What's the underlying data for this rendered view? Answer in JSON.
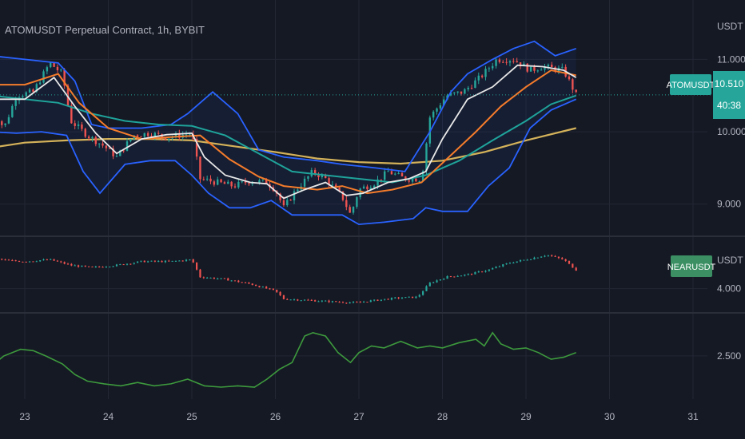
{
  "header": {
    "title": "ATOMUSDT Perpetual Contract, 1h, BYBIT"
  },
  "price_axis": {
    "unit": "USDT",
    "ticks": [
      "11.000",
      "10.000",
      "9.000"
    ],
    "tick_values": [
      11.0,
      10.0,
      9.0
    ],
    "last_symbol": "ATOMUSDT",
    "last_price": "10.510",
    "last_value": 10.51,
    "countdown": "40:38"
  },
  "near_pane": {
    "unit": "USDT",
    "symbol": "NEARUSDT",
    "tick_label": "4.000",
    "tick_value": 4.0
  },
  "ratio_pane": {
    "tick_label": "2.500",
    "tick_value": 2.5
  },
  "time_axis": {
    "labels": [
      "23",
      "24",
      "25",
      "26",
      "27",
      "28",
      "29",
      "30",
      "31"
    ]
  },
  "colors": {
    "background": "#151924",
    "grid": "#232734",
    "up": "#26a69a",
    "down": "#ef5350",
    "band": "#2962ff",
    "ma_fast": "#e8e8e8",
    "ma_mid": "#f57c2b",
    "ma_slow": "#1fa39a",
    "ma_long": "#d4b25a",
    "ratio_line": "#3d9a3d",
    "atom_label_bg": "#26a69a",
    "near_label_bg": "#3b8f63",
    "axis_text": "#b2b5be"
  },
  "chart_data": [
    {
      "type": "candlestick",
      "title": "ATOMUSDT Perpetual Contract, 1h, BYBIT",
      "ylabel": "USDT",
      "ylim": [
        8.6,
        11.6
      ],
      "x_label_days": [
        "23",
        "24",
        "25",
        "26",
        "27",
        "28",
        "29",
        "30",
        "31"
      ],
      "close_path": [
        [
          22.6,
          10.35
        ],
        [
          22.75,
          10.05
        ],
        [
          22.9,
          10.5
        ],
        [
          23.1,
          10.55
        ],
        [
          23.3,
          10.95
        ],
        [
          23.45,
          10.8
        ],
        [
          23.55,
          10.15
        ],
        [
          23.75,
          9.95
        ],
        [
          23.95,
          9.8
        ],
        [
          24.1,
          9.65
        ],
        [
          24.3,
          9.95
        ],
        [
          24.5,
          9.98
        ],
        [
          24.7,
          9.92
        ],
        [
          25.0,
          9.98
        ],
        [
          25.1,
          9.35
        ],
        [
          25.3,
          9.3
        ],
        [
          25.5,
          9.25
        ],
        [
          25.7,
          9.32
        ],
        [
          25.9,
          9.3
        ],
        [
          26.0,
          9.2
        ],
        [
          26.1,
          8.95
        ],
        [
          26.25,
          9.2
        ],
        [
          26.45,
          9.45
        ],
        [
          26.6,
          9.35
        ],
        [
          26.8,
          9.1
        ],
        [
          26.9,
          8.85
        ],
        [
          27.0,
          9.2
        ],
        [
          27.2,
          9.3
        ],
        [
          27.35,
          9.45
        ],
        [
          27.55,
          9.35
        ],
        [
          27.75,
          9.35
        ],
        [
          27.85,
          10.2
        ],
        [
          28.05,
          10.5
        ],
        [
          28.25,
          10.55
        ],
        [
          28.45,
          10.75
        ],
        [
          28.65,
          11.0
        ],
        [
          28.85,
          11.0
        ],
        [
          29.05,
          10.85
        ],
        [
          29.2,
          10.9
        ],
        [
          29.45,
          10.85
        ],
        [
          29.6,
          10.51
        ]
      ],
      "bollinger_upper": [
        [
          22.6,
          11.05
        ],
        [
          23.0,
          11.0
        ],
        [
          23.4,
          10.95
        ],
        [
          23.6,
          10.7
        ],
        [
          23.8,
          10.1
        ],
        [
          24.0,
          10.05
        ],
        [
          24.4,
          10.05
        ],
        [
          24.75,
          10.1
        ],
        [
          24.95,
          10.25
        ],
        [
          25.25,
          10.55
        ],
        [
          25.55,
          10.25
        ],
        [
          25.8,
          9.75
        ],
        [
          26.1,
          9.65
        ],
        [
          26.5,
          9.6
        ],
        [
          26.8,
          9.55
        ],
        [
          27.2,
          9.5
        ],
        [
          27.55,
          9.45
        ],
        [
          27.85,
          10.0
        ],
        [
          28.1,
          10.55
        ],
        [
          28.3,
          10.8
        ],
        [
          28.6,
          11.0
        ],
        [
          28.85,
          11.15
        ],
        [
          29.1,
          11.25
        ],
        [
          29.35,
          11.05
        ],
        [
          29.6,
          11.15
        ]
      ],
      "bollinger_lower": [
        [
          22.6,
          10.0
        ],
        [
          22.9,
          9.98
        ],
        [
          23.2,
          10.0
        ],
        [
          23.5,
          9.95
        ],
        [
          23.7,
          9.45
        ],
        [
          23.9,
          9.15
        ],
        [
          24.2,
          9.55
        ],
        [
          24.5,
          9.6
        ],
        [
          24.8,
          9.6
        ],
        [
          25.0,
          9.4
        ],
        [
          25.2,
          9.15
        ],
        [
          25.45,
          8.95
        ],
        [
          25.7,
          8.95
        ],
        [
          25.95,
          9.05
        ],
        [
          26.2,
          8.85
        ],
        [
          26.5,
          8.85
        ],
        [
          26.8,
          8.85
        ],
        [
          27.0,
          8.72
        ],
        [
          27.3,
          8.75
        ],
        [
          27.65,
          8.8
        ],
        [
          27.8,
          8.95
        ],
        [
          28.0,
          8.9
        ],
        [
          28.3,
          8.9
        ],
        [
          28.55,
          9.25
        ],
        [
          28.8,
          9.5
        ],
        [
          29.05,
          10.05
        ],
        [
          29.3,
          10.3
        ],
        [
          29.6,
          10.45
        ]
      ],
      "ma_fast": [
        [
          22.6,
          10.45
        ],
        [
          23.0,
          10.45
        ],
        [
          23.35,
          10.75
        ],
        [
          23.6,
          10.35
        ],
        [
          23.85,
          9.98
        ],
        [
          24.1,
          9.7
        ],
        [
          24.4,
          9.9
        ],
        [
          24.7,
          9.96
        ],
        [
          25.0,
          9.98
        ],
        [
          25.15,
          9.65
        ],
        [
          25.4,
          9.4
        ],
        [
          25.7,
          9.3
        ],
        [
          25.9,
          9.28
        ],
        [
          26.1,
          9.08
        ],
        [
          26.35,
          9.2
        ],
        [
          26.6,
          9.3
        ],
        [
          26.85,
          9.12
        ],
        [
          27.05,
          9.15
        ],
        [
          27.35,
          9.3
        ],
        [
          27.6,
          9.35
        ],
        [
          27.8,
          9.45
        ],
        [
          28.0,
          9.9
        ],
        [
          28.3,
          10.45
        ],
        [
          28.6,
          10.62
        ],
        [
          28.9,
          10.92
        ],
        [
          29.2,
          10.9
        ],
        [
          29.45,
          10.85
        ],
        [
          29.6,
          10.75
        ]
      ],
      "ma_mid": [
        [
          22.6,
          10.65
        ],
        [
          23.0,
          10.65
        ],
        [
          23.4,
          10.8
        ],
        [
          23.65,
          10.4
        ],
        [
          24.0,
          10.05
        ],
        [
          24.4,
          9.9
        ],
        [
          24.8,
          9.93
        ],
        [
          25.1,
          9.95
        ],
        [
          25.45,
          9.62
        ],
        [
          25.8,
          9.38
        ],
        [
          26.1,
          9.25
        ],
        [
          26.5,
          9.2
        ],
        [
          26.8,
          9.25
        ],
        [
          27.1,
          9.15
        ],
        [
          27.4,
          9.2
        ],
        [
          27.75,
          9.3
        ],
        [
          28.05,
          9.62
        ],
        [
          28.4,
          10.0
        ],
        [
          28.7,
          10.35
        ],
        [
          29.0,
          10.62
        ],
        [
          29.3,
          10.85
        ],
        [
          29.6,
          10.78
        ]
      ],
      "ma_slow": [
        [
          22.6,
          10.5
        ],
        [
          23.0,
          10.45
        ],
        [
          23.4,
          10.4
        ],
        [
          23.8,
          10.25
        ],
        [
          24.2,
          10.15
        ],
        [
          24.6,
          10.1
        ],
        [
          25.0,
          10.08
        ],
        [
          25.4,
          9.95
        ],
        [
          25.8,
          9.7
        ],
        [
          26.2,
          9.45
        ],
        [
          26.6,
          9.4
        ],
        [
          27.0,
          9.35
        ],
        [
          27.4,
          9.3
        ],
        [
          27.8,
          9.4
        ],
        [
          28.2,
          9.6
        ],
        [
          28.6,
          9.88
        ],
        [
          29.0,
          10.15
        ],
        [
          29.3,
          10.38
        ],
        [
          29.6,
          10.5
        ]
      ],
      "ma_long": [
        [
          22.6,
          9.78
        ],
        [
          23.0,
          9.85
        ],
        [
          23.5,
          9.88
        ],
        [
          24.0,
          9.9
        ],
        [
          24.5,
          9.9
        ],
        [
          25.0,
          9.88
        ],
        [
          25.5,
          9.8
        ],
        [
          26.0,
          9.72
        ],
        [
          26.5,
          9.63
        ],
        [
          27.0,
          9.58
        ],
        [
          27.5,
          9.56
        ],
        [
          28.0,
          9.6
        ],
        [
          28.5,
          9.72
        ],
        [
          29.0,
          9.88
        ],
        [
          29.6,
          10.05
        ]
      ]
    },
    {
      "type": "candlestick",
      "title": "NEARUSDT",
      "ylabel": "USDT",
      "ylim": [
        3.55,
        5.05
      ],
      "close_path": [
        [
          22.6,
          4.65
        ],
        [
          22.8,
          4.6
        ],
        [
          23.0,
          4.58
        ],
        [
          23.3,
          4.62
        ],
        [
          23.55,
          4.5
        ],
        [
          23.8,
          4.45
        ],
        [
          24.1,
          4.5
        ],
        [
          24.4,
          4.58
        ],
        [
          24.75,
          4.58
        ],
        [
          25.0,
          4.62
        ],
        [
          25.1,
          4.25
        ],
        [
          25.4,
          4.2
        ],
        [
          25.7,
          4.1
        ],
        [
          26.0,
          3.95
        ],
        [
          26.1,
          3.78
        ],
        [
          26.4,
          3.75
        ],
        [
          26.7,
          3.72
        ],
        [
          26.95,
          3.7
        ],
        [
          27.2,
          3.75
        ],
        [
          27.45,
          3.8
        ],
        [
          27.7,
          3.82
        ],
        [
          27.85,
          4.12
        ],
        [
          28.05,
          4.25
        ],
        [
          28.3,
          4.3
        ],
        [
          28.55,
          4.4
        ],
        [
          28.8,
          4.55
        ],
        [
          29.0,
          4.62
        ],
        [
          29.25,
          4.72
        ],
        [
          29.45,
          4.62
        ],
        [
          29.6,
          4.4
        ]
      ]
    },
    {
      "type": "line",
      "title": "",
      "ylim": [
        1.85,
        3.1
      ],
      "x": [
        22.6,
        22.75,
        22.95,
        23.1,
        23.25,
        23.45,
        23.6,
        23.75,
        23.95,
        24.15,
        24.35,
        24.55,
        24.75,
        24.95,
        25.15,
        25.35,
        25.55,
        25.75,
        25.9,
        26.05,
        26.2,
        26.35,
        26.45,
        26.6,
        26.75,
        26.9,
        27.0,
        27.15,
        27.3,
        27.5,
        27.7,
        27.85,
        28.0,
        28.2,
        28.4,
        28.5,
        28.6,
        28.7,
        28.85,
        29.0,
        29.15,
        29.3,
        29.45,
        29.6
      ],
      "y": [
        2.35,
        2.5,
        2.6,
        2.58,
        2.5,
        2.38,
        2.22,
        2.12,
        2.08,
        2.05,
        2.1,
        2.05,
        2.08,
        2.15,
        2.05,
        2.03,
        2.05,
        2.03,
        2.15,
        2.3,
        2.4,
        2.8,
        2.85,
        2.8,
        2.55,
        2.4,
        2.55,
        2.65,
        2.62,
        2.72,
        2.62,
        2.65,
        2.62,
        2.7,
        2.75,
        2.65,
        2.85,
        2.68,
        2.6,
        2.62,
        2.55,
        2.45,
        2.48,
        2.55
      ]
    }
  ]
}
